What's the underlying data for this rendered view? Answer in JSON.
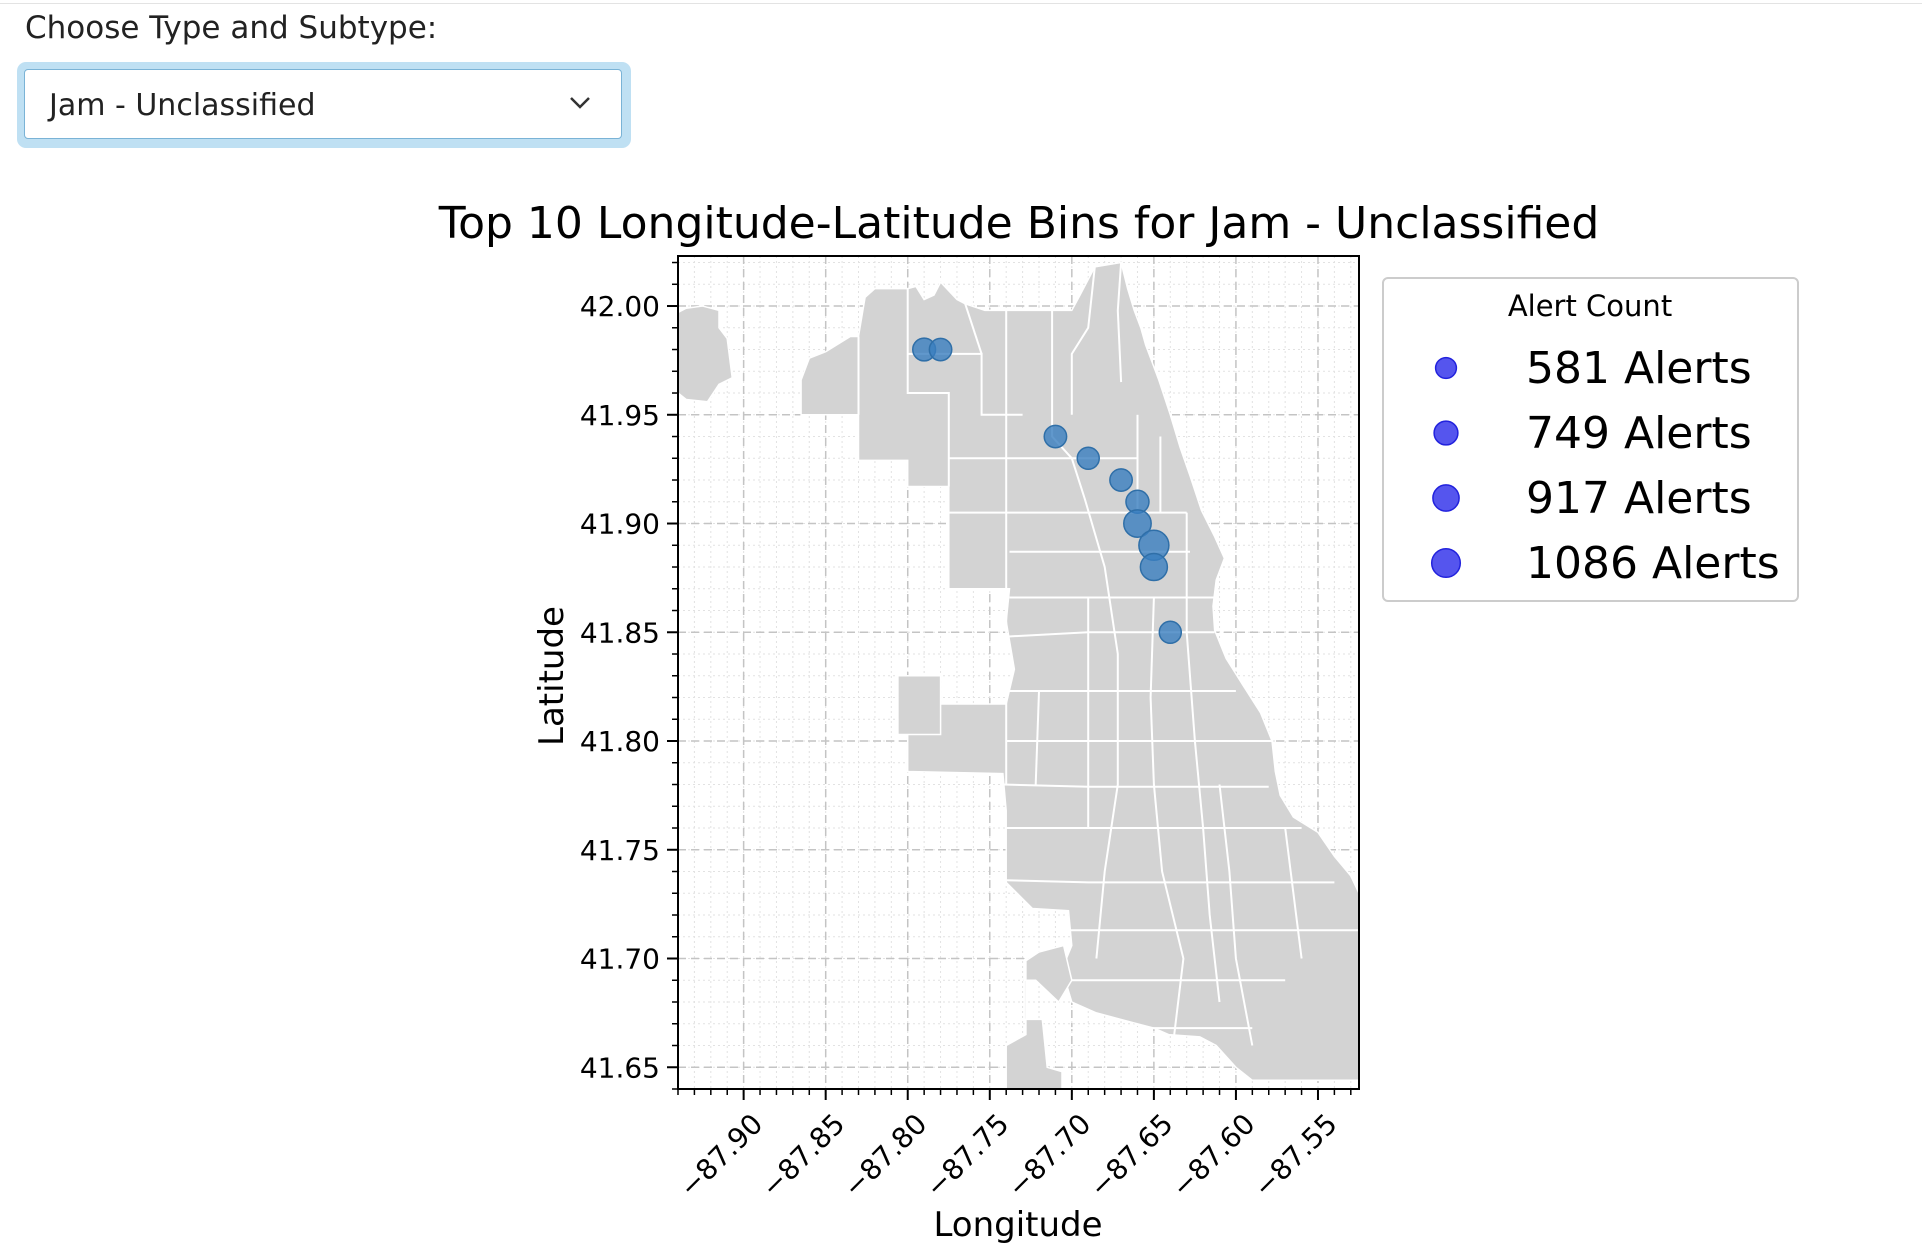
{
  "selector": {
    "label": "Choose Type and Subtype:",
    "selected": "Jam - Unclassified"
  },
  "chart_data": {
    "type": "scatter",
    "title": "Top 10 Longitude-Latitude Bins for Jam - Unclassified",
    "xlabel": "Longitude",
    "ylabel": "Latitude",
    "xlim": [
      -87.94,
      -87.525
    ],
    "ylim": [
      41.64,
      42.023
    ],
    "xticks": [
      -87.9,
      -87.85,
      -87.8,
      -87.75,
      -87.7,
      -87.65,
      -87.6,
      -87.55
    ],
    "xtick_labels": [
      "−87.90",
      "−87.85",
      "−87.80",
      "−87.75",
      "−87.70",
      "−87.65",
      "−87.60",
      "−87.55"
    ],
    "yticks": [
      41.65,
      41.7,
      41.75,
      41.8,
      41.85,
      41.9,
      41.95,
      42.0
    ],
    "ytick_labels": [
      "41.65",
      "41.70",
      "41.75",
      "41.80",
      "41.85",
      "41.90",
      "41.95",
      "42.00"
    ],
    "grid": true,
    "background_map": "Chicago community areas (gray)",
    "points": [
      {
        "lon": -87.79,
        "lat": 41.98,
        "alerts": 620
      },
      {
        "lon": -87.78,
        "lat": 41.98,
        "alerts": 600
      },
      {
        "lon": -87.71,
        "lat": 41.94,
        "alerts": 600
      },
      {
        "lon": -87.69,
        "lat": 41.93,
        "alerts": 585
      },
      {
        "lon": -87.67,
        "lat": 41.92,
        "alerts": 600
      },
      {
        "lon": -87.66,
        "lat": 41.91,
        "alerts": 640
      },
      {
        "lon": -87.66,
        "lat": 41.9,
        "alerts": 900
      },
      {
        "lon": -87.65,
        "lat": 41.89,
        "alerts": 1086
      },
      {
        "lon": -87.65,
        "lat": 41.88,
        "alerts": 880
      },
      {
        "lon": -87.64,
        "lat": 41.85,
        "alerts": 581
      }
    ],
    "legend": {
      "title": "Alert Count",
      "position": "outside right",
      "entries": [
        {
          "label": "581 Alerts",
          "alerts": 581
        },
        {
          "label": "749 Alerts",
          "alerts": 749
        },
        {
          "label": "917 Alerts",
          "alerts": 917
        },
        {
          "label": "1086 Alerts",
          "alerts": 1086
        }
      ]
    },
    "colors": {
      "points": "#3a7ebf",
      "legend_markers": "#2b2bea",
      "map_fill": "#d3d3d3",
      "map_edges": "#ffffff"
    }
  }
}
